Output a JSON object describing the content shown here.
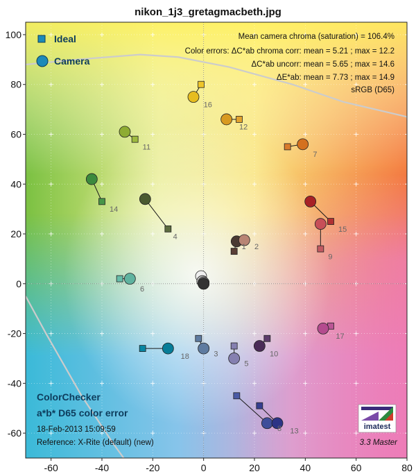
{
  "chart_data": {
    "type": "scatter",
    "title": "nikon_1j3_gretagmacbeth.jpg",
    "xlim": [
      -70,
      80
    ],
    "ylim": [
      -70,
      105
    ],
    "x_ticks": [
      "-60",
      "-40",
      "-20",
      "0",
      "20",
      "40",
      "60",
      "80"
    ],
    "y_ticks": [
      "100",
      "80",
      "60",
      "40",
      "20",
      "0",
      "-20",
      "-40",
      "-60"
    ],
    "grid": true,
    "legend": {
      "placement": "top-left",
      "entries": [
        {
          "name": "Ideal",
          "marker": "square"
        },
        {
          "name": "Camera",
          "marker": "circle"
        }
      ]
    },
    "series": [
      {
        "name": "Ideal",
        "marker": "square",
        "points": [
          {
            "id": "1",
            "a": 12,
            "b": 13,
            "color": "#5a3f36"
          },
          {
            "id": "2",
            "a": 15,
            "b": 17,
            "color": "#c28b7a"
          },
          {
            "id": "3",
            "a": -2,
            "b": -22,
            "color": "#5e7ba0"
          },
          {
            "id": "4",
            "a": -14,
            "b": 22,
            "color": "#5c6b3f"
          },
          {
            "id": "5",
            "a": 12,
            "b": -25,
            "color": "#8580b0"
          },
          {
            "id": "6",
            "a": -33,
            "b": 2,
            "color": "#67bdaa"
          },
          {
            "id": "7",
            "a": 33,
            "b": 55,
            "color": "#d97b2c"
          },
          {
            "id": "8",
            "a": 13,
            "b": -45,
            "color": "#4a5aa5"
          },
          {
            "id": "9",
            "a": 46,
            "b": 14,
            "color": "#c25a62"
          },
          {
            "id": "10",
            "a": 25,
            "b": -22,
            "color": "#5d3c6b"
          },
          {
            "id": "11",
            "a": -27,
            "b": 58,
            "color": "#9eba40"
          },
          {
            "id": "12",
            "a": 14,
            "b": 66,
            "color": "#e2a32e"
          },
          {
            "id": "13",
            "a": 22,
            "b": -49,
            "color": "#353e8f"
          },
          {
            "id": "14",
            "a": -40,
            "b": 33,
            "color": "#479648"
          },
          {
            "id": "15",
            "a": 50,
            "b": 25,
            "color": "#b03033"
          },
          {
            "id": "16",
            "a": -1,
            "b": 80,
            "color": "#eec52a"
          },
          {
            "id": "17",
            "a": 50,
            "b": -17,
            "color": "#bb5595"
          },
          {
            "id": "18",
            "a": -24,
            "b": -26,
            "color": "#0885a1"
          },
          {
            "id": "19",
            "a": 0,
            "b": 0,
            "color": "#f3f3f2"
          },
          {
            "id": "20",
            "a": 0,
            "b": 0,
            "color": "#c8c8c8"
          },
          {
            "id": "21",
            "a": 0,
            "b": 0,
            "color": "#a0a0a0"
          },
          {
            "id": "22",
            "a": 0,
            "b": 0,
            "color": "#7a7a7a"
          },
          {
            "id": "23",
            "a": 0,
            "b": 0,
            "color": "#555555"
          },
          {
            "id": "24",
            "a": 0,
            "b": 0,
            "color": "#343434"
          }
        ]
      },
      {
        "name": "Camera",
        "marker": "circle",
        "points": [
          {
            "id": "1",
            "a": 13,
            "b": 17,
            "color": "#4a3a33"
          },
          {
            "id": "2",
            "a": 16,
            "b": 17.5,
            "color": "#b88474"
          },
          {
            "id": "3",
            "a": 0,
            "b": -26,
            "color": "#5e7ba0"
          },
          {
            "id": "4",
            "a": -23,
            "b": 34,
            "color": "#4a5a30"
          },
          {
            "id": "5",
            "a": 12,
            "b": -30,
            "color": "#8580b0"
          },
          {
            "id": "6",
            "a": -29,
            "b": 2,
            "color": "#5fb39f"
          },
          {
            "id": "7",
            "a": 39,
            "b": 56,
            "color": "#d4711f"
          },
          {
            "id": "8",
            "a": 25,
            "b": -56,
            "color": "#3e4e9a"
          },
          {
            "id": "9",
            "a": 46,
            "b": 24,
            "color": "#c74f58"
          },
          {
            "id": "10",
            "a": 22,
            "b": -25,
            "color": "#4a2b57"
          },
          {
            "id": "11",
            "a": -31,
            "b": 61,
            "color": "#8eac33"
          },
          {
            "id": "12",
            "a": 9,
            "b": 66,
            "color": "#d89a20"
          },
          {
            "id": "13",
            "a": 29,
            "b": -56,
            "color": "#2c3486"
          },
          {
            "id": "14",
            "a": -44,
            "b": 42,
            "color": "#3c8a3d"
          },
          {
            "id": "15",
            "a": 42,
            "b": 33,
            "color": "#a82226"
          },
          {
            "id": "16",
            "a": -4,
            "b": 75,
            "color": "#e6bd1f"
          },
          {
            "id": "17",
            "a": 47,
            "b": -18,
            "color": "#b44b8e"
          },
          {
            "id": "18",
            "a": -14,
            "b": -26,
            "color": "#077d98"
          },
          {
            "id": "19",
            "a": -1,
            "b": 3,
            "color": "#efefef"
          },
          {
            "id": "20",
            "a": -0.5,
            "b": 1,
            "color": "#c4c4c4"
          },
          {
            "id": "21",
            "a": 0,
            "b": 0.5,
            "color": "#9c9c9c"
          },
          {
            "id": "22",
            "a": 0,
            "b": 0,
            "color": "#777777"
          },
          {
            "id": "23",
            "a": 0,
            "b": 0,
            "color": "#525252"
          },
          {
            "id": "24",
            "a": 0,
            "b": 0,
            "color": "#333333"
          }
        ]
      }
    ],
    "labels": [
      {
        "id": "1",
        "a": 15,
        "b": 15,
        "text": "1"
      },
      {
        "id": "2",
        "a": 20,
        "b": 15,
        "text": "2"
      },
      {
        "id": "3",
        "a": 4,
        "b": -28,
        "text": "3"
      },
      {
        "id": "4",
        "a": -12,
        "b": 19,
        "text": "4"
      },
      {
        "id": "5",
        "a": 16,
        "b": -32,
        "text": "5"
      },
      {
        "id": "6",
        "a": -25,
        "b": -2,
        "text": "6"
      },
      {
        "id": "7",
        "a": 43,
        "b": 52,
        "text": "7"
      },
      {
        "id": "8",
        "a": 29,
        "b": -58,
        "text": "8"
      },
      {
        "id": "9",
        "a": 49,
        "b": 11,
        "text": "9"
      },
      {
        "id": "10",
        "a": 26,
        "b": -28,
        "text": "10"
      },
      {
        "id": "11",
        "a": -24,
        "b": 55,
        "text": "11"
      },
      {
        "id": "12",
        "a": 14,
        "b": 63,
        "text": "12"
      },
      {
        "id": "13",
        "a": 34,
        "b": -59,
        "text": "13"
      },
      {
        "id": "14",
        "a": -37,
        "b": 30,
        "text": "14"
      },
      {
        "id": "15",
        "a": 53,
        "b": 22,
        "text": "15"
      },
      {
        "id": "16",
        "a": 0,
        "b": 72,
        "text": "16"
      },
      {
        "id": "17",
        "a": 52,
        "b": -21,
        "text": "17"
      },
      {
        "id": "18",
        "a": -9,
        "b": -29,
        "text": "18"
      }
    ],
    "boundary": [
      {
        "name": "left",
        "points": [
          [
            -70,
            -5
          ],
          [
            -62,
            -20
          ],
          [
            -48,
            -45
          ],
          [
            -35,
            -65
          ],
          [
            -30,
            -72
          ]
        ]
      },
      {
        "name": "top",
        "points": [
          [
            -70,
            88
          ],
          [
            -50,
            90
          ],
          [
            -25,
            92
          ],
          [
            -10,
            91
          ],
          [
            10,
            87
          ],
          [
            35,
            80
          ],
          [
            55,
            73
          ],
          [
            80,
            67
          ],
          [
            81,
            60
          ]
        ]
      }
    ]
  },
  "stats": {
    "line1": "Mean camera chroma (saturation) = 106.4%",
    "line2": "Color errors: ΔC*ab chroma corr:  mean = 5.21 ;  max = 12.2",
    "line3": "ΔC*ab uncorr:  mean = 5.65 ;  max = 14.6",
    "line4": "ΔE*ab:  mean = 7.73 ;  max = 14.9",
    "line5": "sRGB (D65)"
  },
  "info": {
    "heading1": "ColorChecker",
    "heading2": "a*b* D65 color error",
    "timestamp": "18-Feb-2013 15:09:59",
    "reference": "Reference: X-Rite (default) (new)",
    "version": "3.3  Master"
  },
  "logo": {
    "text": "imatest"
  },
  "colors": {
    "legend_marker": "#1c8ab8",
    "legend_text": "#0d3c5c",
    "boundary": "#cccccc",
    "gray_gradient_start": "#f3f3f2",
    "gray_gradient_end": "#333333"
  }
}
